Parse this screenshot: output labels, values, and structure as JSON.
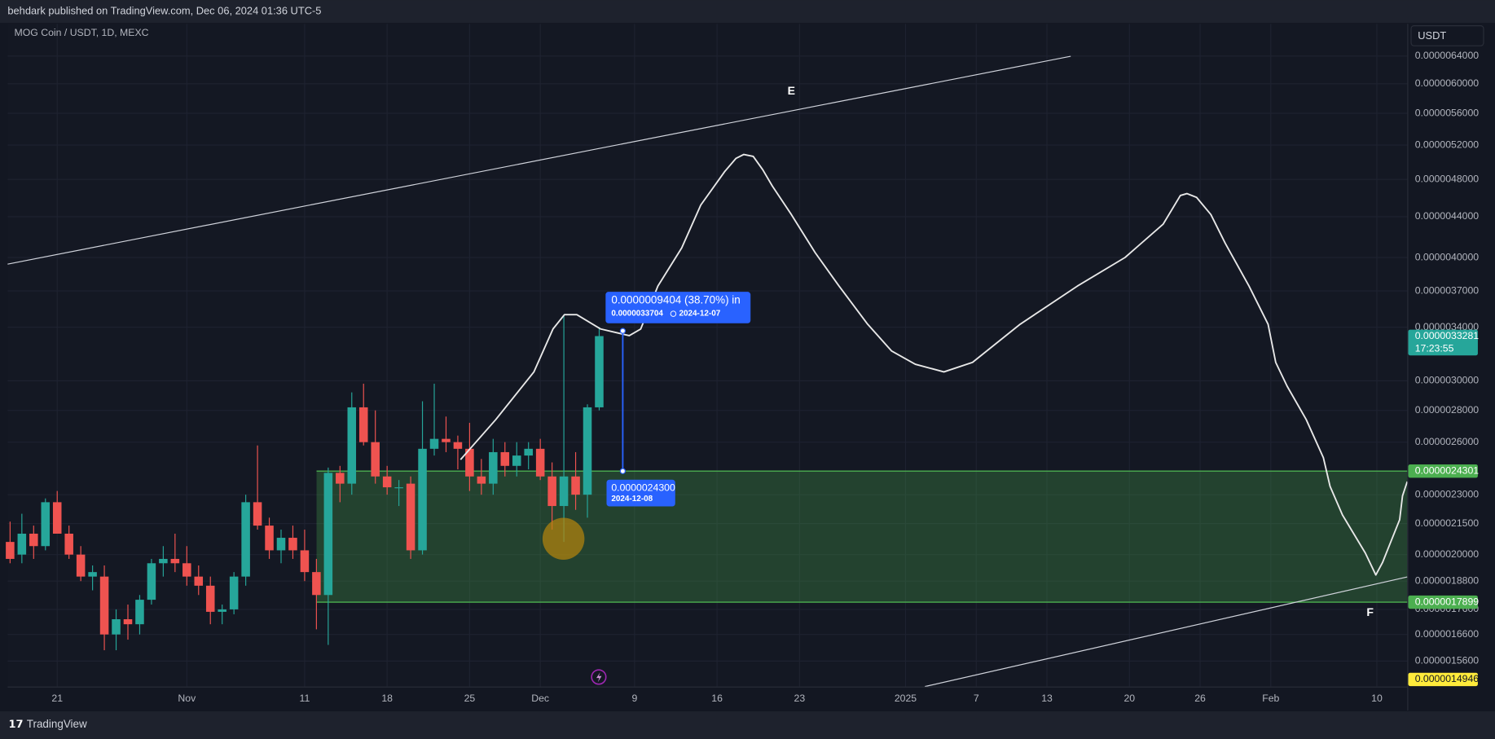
{
  "header": {
    "published": "behdark published on TradingView.com, Dec 06, 2024 01:36 UTC-5"
  },
  "chart_data": {
    "type": "candlestick",
    "title": "MOG Coin / USDT, 1D, MEXC",
    "currency": "USDT",
    "x": [
      "2024-10-17",
      "2024-10-18",
      "2024-10-19",
      "2024-10-20",
      "2024-10-21",
      "2024-10-22",
      "2024-10-23",
      "2024-10-24",
      "2024-10-25",
      "2024-10-26",
      "2024-10-27",
      "2024-10-28",
      "2024-10-29",
      "2024-10-30",
      "2024-10-31",
      "2024-11-01",
      "2024-11-02",
      "2024-11-03",
      "2024-11-04",
      "2024-11-05",
      "2024-11-06",
      "2024-11-07",
      "2024-11-08",
      "2024-11-09",
      "2024-11-10",
      "2024-11-11",
      "2024-11-12",
      "2024-11-13",
      "2024-11-14",
      "2024-11-15",
      "2024-11-16",
      "2024-11-17",
      "2024-11-18",
      "2024-11-19",
      "2024-11-20",
      "2024-11-21",
      "2024-11-22",
      "2024-11-23",
      "2024-11-24",
      "2024-11-25",
      "2024-11-26",
      "2024-11-27",
      "2024-11-28",
      "2024-11-29",
      "2024-11-30",
      "2024-12-01",
      "2024-12-02",
      "2024-12-03",
      "2024-12-04",
      "2024-12-05",
      "2024-12-06"
    ],
    "open": [
      2.06e-06,
      2e-06,
      2.1e-06,
      2.04e-06,
      2.26e-06,
      2.1e-06,
      2e-06,
      1.9e-06,
      1.9e-06,
      1.66e-06,
      1.72e-06,
      1.7e-06,
      1.8e-06,
      1.96e-06,
      1.98e-06,
      1.96e-06,
      1.9e-06,
      1.86e-06,
      1.75e-06,
      1.76e-06,
      1.9e-06,
      2.26e-06,
      2.14e-06,
      2.02e-06,
      2.08e-06,
      2.02e-06,
      1.92e-06,
      1.82e-06,
      2.42e-06,
      2.36e-06,
      2.82e-06,
      2.6e-06,
      2.4e-06,
      2.34e-06,
      2.36e-06,
      2.02e-06,
      2.56e-06,
      2.62e-06,
      2.6e-06,
      2.56e-06,
      2.4e-06,
      2.36e-06,
      2.54e-06,
      2.46e-06,
      2.52e-06,
      2.56e-06,
      2.4e-06,
      2.24e-06,
      2.4e-06,
      2.3e-06,
      2.82e-06
    ],
    "high": [
      2.16e-06,
      2.2e-06,
      2.14e-06,
      2.28e-06,
      2.32e-06,
      2.14e-06,
      2.04e-06,
      1.95e-06,
      1.95e-06,
      1.76e-06,
      1.78e-06,
      1.82e-06,
      1.98e-06,
      2.04e-06,
      2.1e-06,
      2.04e-06,
      1.95e-06,
      1.9e-06,
      1.78e-06,
      1.92e-06,
      2.3e-06,
      2.58e-06,
      2.18e-06,
      2.12e-06,
      2.14e-06,
      2.12e-06,
      1.98e-06,
      2.45e-06,
      2.46e-06,
      2.92e-06,
      2.98e-06,
      2.8e-06,
      2.46e-06,
      2.38e-06,
      2.4e-06,
      2.86e-06,
      2.98e-06,
      2.76e-06,
      2.64e-06,
      2.72e-06,
      2.5e-06,
      2.62e-06,
      2.6e-06,
      2.6e-06,
      2.6e-06,
      2.62e-06,
      2.48e-06,
      3.5e-06,
      2.54e-06,
      2.84e-06,
      3.4e-06
    ],
    "low": [
      1.96e-06,
      1.96e-06,
      1.98e-06,
      2.02e-06,
      2.1e-06,
      1.98e-06,
      1.88e-06,
      1.84e-06,
      1.6e-06,
      1.6e-06,
      1.64e-06,
      1.66e-06,
      1.78e-06,
      1.9e-06,
      1.92e-06,
      1.86e-06,
      1.82e-06,
      1.7e-06,
      1.7e-06,
      1.74e-06,
      1.86e-06,
      2.12e-06,
      1.98e-06,
      1.96e-06,
      1.98e-06,
      1.88e-06,
      1.68e-06,
      1.62e-06,
      2.26e-06,
      2.3e-06,
      2.58e-06,
      2.36e-06,
      2.3e-06,
      2.24e-06,
      1.98e-06,
      2e-06,
      2.52e-06,
      2.54e-06,
      2.44e-06,
      2.32e-06,
      2.3e-06,
      2.3e-06,
      2.4e-06,
      2.4e-06,
      2.44e-06,
      2.38e-06,
      2.12e-06,
      2.06e-06,
      2.22e-06,
      2.18e-06,
      2.8e-06
    ],
    "close": [
      1.98e-06,
      2.1e-06,
      2.04e-06,
      2.26e-06,
      2.1e-06,
      2e-06,
      1.9e-06,
      1.92e-06,
      1.66e-06,
      1.72e-06,
      1.7e-06,
      1.8e-06,
      1.96e-06,
      1.98e-06,
      1.96e-06,
      1.9e-06,
      1.86e-06,
      1.75e-06,
      1.76e-06,
      1.9e-06,
      2.26e-06,
      2.14e-06,
      2.02e-06,
      2.08e-06,
      2.02e-06,
      1.92e-06,
      1.82e-06,
      2.42e-06,
      2.36e-06,
      2.82e-06,
      2.6e-06,
      2.4e-06,
      2.34e-06,
      2.34e-06,
      2.02e-06,
      2.56e-06,
      2.62e-06,
      2.6e-06,
      2.56e-06,
      2.4e-06,
      2.36e-06,
      2.54e-06,
      2.46e-06,
      2.52e-06,
      2.56e-06,
      2.4e-06,
      2.24e-06,
      2.4e-06,
      2.3e-06,
      2.82e-06,
      3.33e-06
    ],
    "up_color": "#26a69a",
    "down_color": "#ef5350",
    "log_scale": true,
    "grid": true,
    "ylim": [
      1.47e-06,
      6.9e-06
    ],
    "yticks": [
      {
        "value": 6.4e-06,
        "label": "0.0000064000"
      },
      {
        "value": 6e-06,
        "label": "0.0000060000"
      },
      {
        "value": 5.6e-06,
        "label": "0.0000056000"
      },
      {
        "value": 5.2e-06,
        "label": "0.0000052000"
      },
      {
        "value": 4.8e-06,
        "label": "0.0000048000"
      },
      {
        "value": 4.4e-06,
        "label": "0.0000044000"
      },
      {
        "value": 4e-06,
        "label": "0.0000040000"
      },
      {
        "value": 3.7e-06,
        "label": "0.0000037000"
      },
      {
        "value": 3.4e-06,
        "label": "0.0000034000"
      },
      {
        "value": 3e-06,
        "label": "0.0000030000"
      },
      {
        "value": 2.8e-06,
        "label": "0.0000028000"
      },
      {
        "value": 2.6e-06,
        "label": "0.0000026000"
      },
      {
        "value": 2.3e-06,
        "label": "0.0000023000"
      },
      {
        "value": 2.15e-06,
        "label": "0.0000021500"
      },
      {
        "value": 2e-06,
        "label": "0.0000020000"
      },
      {
        "value": 1.88e-06,
        "label": "0.0000018800"
      },
      {
        "value": 1.76e-06,
        "label": "0.0000017600"
      },
      {
        "value": 1.66e-06,
        "label": "0.0000016600"
      },
      {
        "value": 1.56e-06,
        "label": "0.0000015600"
      }
    ],
    "xlim": [
      "2024-10-16T19:00:00Z",
      "2025-02-12T14:00:00Z"
    ],
    "xticks": [
      {
        "value": "2024-10-21",
        "label": "21"
      },
      {
        "value": "2024-11-01",
        "label": "Nov"
      },
      {
        "value": "2024-11-11",
        "label": "11"
      },
      {
        "value": "2024-11-18",
        "label": "18"
      },
      {
        "value": "2024-11-25",
        "label": "25"
      },
      {
        "value": "2024-12-01",
        "label": "Dec"
      },
      {
        "value": "2024-12-09",
        "label": "9"
      },
      {
        "value": "2024-12-16",
        "label": "16"
      },
      {
        "value": "2024-12-23",
        "label": "23"
      },
      {
        "value": "2025-01-01",
        "label": "2025"
      },
      {
        "value": "2025-01-07",
        "label": "7"
      },
      {
        "value": "2025-01-13",
        "label": "13"
      },
      {
        "value": "2025-01-20",
        "label": "20"
      },
      {
        "value": "2025-01-26",
        "label": "26"
      },
      {
        "value": "2025-02-01",
        "label": "Feb"
      },
      {
        "value": "2025-02-10",
        "label": "10"
      }
    ],
    "price_labels": [
      {
        "value": 2.4301e-06,
        "color": "#4caf50",
        "text_color": "#ffffff"
      },
      {
        "value": 1.7899e-06,
        "color": "#4caf50",
        "text_color": "#ffffff"
      },
      {
        "value": 3.3281e-06,
        "color": "#26a69a",
        "text_color": "#ffffff",
        "countdown": "17:23:55"
      },
      {
        "value": 1.4946e-06,
        "color": "#ffeb3b",
        "text_color": "#131722"
      }
    ],
    "measure": {
      "change": "0.0000009404 (38.70%) in",
      "end": {
        "value": 3.3704e-06,
        "label": "0.0000033704"
      },
      "end_date": "2024-12-07",
      "start": {
        "value": 2.43e-06,
        "label": "0.0000024300"
      },
      "start_date": "2024-12-08"
    },
    "annotations": [
      "E",
      "F"
    ]
  },
  "footer": {
    "brand": "TradingView"
  }
}
